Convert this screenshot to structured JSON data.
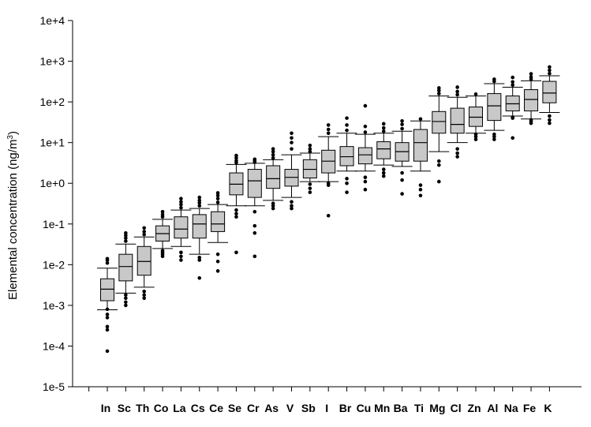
{
  "chart_data": {
    "type": "box",
    "ylabel": "Elemental concentration (ng/m",
    "ylabel_sup": "3",
    "ylabel_end": ")",
    "yscale": "log",
    "ylim": [
      1e-05,
      10000
    ],
    "yticks": [
      {
        "value": 1e-05,
        "label": "1e-5"
      },
      {
        "value": 0.0001,
        "label": "1e-4"
      },
      {
        "value": 0.001,
        "label": "1e-3"
      },
      {
        "value": 0.01,
        "label": "1e-2"
      },
      {
        "value": 0.1,
        "label": "1e-1"
      },
      {
        "value": 1,
        "label": "1e+0"
      },
      {
        "value": 10,
        "label": "1e+1"
      },
      {
        "value": 100,
        "label": "1e+2"
      },
      {
        "value": 1000,
        "label": "1e+3"
      },
      {
        "value": 10000,
        "label": "1e+4"
      }
    ],
    "grid": false,
    "legend": "none",
    "box_color": "#c8c8c8",
    "categories": [
      "In",
      "Sc",
      "Th",
      "Co",
      "La",
      "Cs",
      "Ce",
      "Se",
      "Cr",
      "As",
      "V",
      "Sb",
      "I",
      "Br",
      "Cu",
      "Mn",
      "Ba",
      "Ti",
      "Mg",
      "Cl",
      "Zn",
      "Al",
      "Na",
      "Fe",
      "K"
    ],
    "boxes": [
      {
        "label": "In",
        "whisker_low": 0.00078,
        "q1": 0.0013,
        "median": 0.0025,
        "q3": 0.0045,
        "whisker_high": 0.0082,
        "outliers": [
          7.5e-05,
          0.00025,
          0.0003,
          0.0005,
          0.0006,
          0.0008,
          0.011,
          0.013,
          0.014
        ]
      },
      {
        "label": "Sc",
        "whisker_low": 0.002,
        "q1": 0.004,
        "median": 0.009,
        "q3": 0.018,
        "whisker_high": 0.032,
        "outliers": [
          0.001,
          0.0012,
          0.0015,
          0.0018,
          0.038,
          0.045,
          0.052,
          0.06
        ]
      },
      {
        "label": "Th",
        "whisker_low": 0.0028,
        "q1": 0.0055,
        "median": 0.012,
        "q3": 0.028,
        "whisker_high": 0.048,
        "outliers": [
          0.0015,
          0.0018,
          0.0022,
          0.055,
          0.065,
          0.08
        ]
      },
      {
        "label": "Co",
        "whisker_low": 0.025,
        "q1": 0.038,
        "median": 0.058,
        "q3": 0.09,
        "whisker_high": 0.13,
        "outliers": [
          0.016,
          0.018,
          0.02,
          0.022,
          0.15,
          0.17,
          0.2
        ]
      },
      {
        "label": "La",
        "whisker_low": 0.028,
        "q1": 0.045,
        "median": 0.075,
        "q3": 0.15,
        "whisker_high": 0.22,
        "outliers": [
          0.013,
          0.016,
          0.02,
          0.25,
          0.3,
          0.35,
          0.42
        ]
      },
      {
        "label": "Cs",
        "whisker_low": 0.018,
        "q1": 0.045,
        "median": 0.1,
        "q3": 0.17,
        "whisker_high": 0.24,
        "outliers": [
          0.0047,
          0.013,
          0.015,
          0.28,
          0.33,
          0.38,
          0.45
        ]
      },
      {
        "label": "Ce",
        "whisker_low": 0.035,
        "q1": 0.065,
        "median": 0.1,
        "q3": 0.2,
        "whisker_high": 0.3,
        "outliers": [
          0.007,
          0.012,
          0.018,
          0.34,
          0.42,
          0.5,
          0.58
        ]
      },
      {
        "label": "Se",
        "whisker_low": 0.28,
        "q1": 0.52,
        "median": 0.95,
        "q3": 1.8,
        "whisker_high": 2.9,
        "outliers": [
          0.02,
          0.15,
          0.18,
          0.22,
          3.2,
          3.6,
          4.2,
          4.8
        ]
      },
      {
        "label": "Cr",
        "whisker_low": 0.28,
        "q1": 0.45,
        "median": 1.15,
        "q3": 2.2,
        "whisker_high": 3.1,
        "outliers": [
          0.016,
          0.06,
          0.09,
          0.2,
          3.3,
          3.6,
          3.9
        ]
      },
      {
        "label": "As",
        "whisker_low": 0.38,
        "q1": 0.75,
        "median": 1.3,
        "q3": 2.7,
        "whisker_high": 3.8,
        "outliers": [
          0.24,
          0.28,
          0.32,
          4.2,
          5.0,
          6.0,
          7.0
        ]
      },
      {
        "label": "V",
        "whisker_low": 0.45,
        "q1": 0.85,
        "median": 1.4,
        "q3": 2.2,
        "whisker_high": 5.0,
        "outliers": [
          0.24,
          0.28,
          0.35,
          7.0,
          10.0,
          13.0,
          17.0
        ]
      },
      {
        "label": "Sb",
        "whisker_low": 1.1,
        "q1": 1.35,
        "median": 2.2,
        "q3": 3.8,
        "whisker_high": 5.5,
        "outliers": [
          0.6,
          0.75,
          0.95,
          6.0,
          7.0,
          8.5
        ]
      },
      {
        "label": "I",
        "whisker_low": 1.1,
        "q1": 1.8,
        "median": 3.5,
        "q3": 6.5,
        "whisker_high": 14.0,
        "outliers": [
          0.16,
          0.9,
          1.0,
          17.0,
          21.0,
          27.0
        ]
      },
      {
        "label": "Br",
        "whisker_low": 2.0,
        "q1": 2.7,
        "median": 4.5,
        "q3": 8.0,
        "whisker_high": 17.0,
        "outliers": [
          0.6,
          1.0,
          1.3,
          20.0,
          27.0,
          40.0
        ]
      },
      {
        "label": "Cu",
        "whisker_low": 2.0,
        "q1": 3.0,
        "median": 5.0,
        "q3": 7.5,
        "whisker_high": 16.0,
        "outliers": [
          0.7,
          1.1,
          1.4,
          18.0,
          25.0,
          80.0
        ]
      },
      {
        "label": "Mn",
        "whisker_low": 2.8,
        "q1": 4.0,
        "median": 7.0,
        "q3": 10.5,
        "whisker_high": 17.0,
        "outliers": [
          1.5,
          1.8,
          2.2,
          19.0,
          23.0,
          29.0
        ]
      },
      {
        "label": "Ba",
        "whisker_low": 2.6,
        "q1": 3.5,
        "median": 6.0,
        "q3": 10.0,
        "whisker_high": 19.0,
        "outliers": [
          0.55,
          1.2,
          1.8,
          22.0,
          28.0,
          34.0
        ]
      },
      {
        "label": "Ti",
        "whisker_low": 2.0,
        "q1": 3.5,
        "median": 10.0,
        "q3": 21.0,
        "whisker_high": 34.0,
        "outliers": [
          0.5,
          0.7,
          0.9,
          38.0
        ]
      },
      {
        "label": "Mg",
        "whisker_low": 6.0,
        "q1": 17.0,
        "median": 33.0,
        "q3": 58.0,
        "whisker_high": 140.0,
        "outliers": [
          1.1,
          2.8,
          3.5,
          160.0,
          190.0,
          220.0
        ]
      },
      {
        "label": "Cl",
        "whisker_low": 10.0,
        "q1": 17.0,
        "median": 28.0,
        "q3": 70.0,
        "whisker_high": 130.0,
        "outliers": [
          4.5,
          5.5,
          7.0,
          150.0,
          180.0,
          230.0
        ]
      },
      {
        "label": "Zn",
        "whisker_low": 17.0,
        "q1": 25.0,
        "median": 42.0,
        "q3": 75.0,
        "whisker_high": 140.0,
        "outliers": [
          12.0,
          14.0,
          16.0,
          155.0
        ]
      },
      {
        "label": "Al",
        "whisker_low": 20.0,
        "q1": 35.0,
        "median": 80.0,
        "q3": 160.0,
        "whisker_high": 280.0,
        "outliers": [
          12.0,
          14.0,
          16.0,
          320.0,
          360.0
        ]
      },
      {
        "label": "Na",
        "whisker_low": 45.0,
        "q1": 60.0,
        "median": 90.0,
        "q3": 140.0,
        "whisker_high": 230.0,
        "outliers": [
          13.0,
          40.0,
          42.0,
          260.0,
          310.0,
          400.0
        ]
      },
      {
        "label": "Fe",
        "whisker_low": 38.0,
        "q1": 60.0,
        "median": 115.0,
        "q3": 200.0,
        "whisker_high": 330.0,
        "outliers": [
          30.0,
          33.0,
          36.0,
          360.0,
          410.0,
          490.0
        ]
      },
      {
        "label": "K",
        "whisker_low": 55.0,
        "q1": 95.0,
        "median": 165.0,
        "q3": 320.0,
        "whisker_high": 440.0,
        "outliers": [
          30.0,
          36.0,
          45.0,
          500.0,
          600.0,
          720.0
        ]
      }
    ]
  }
}
